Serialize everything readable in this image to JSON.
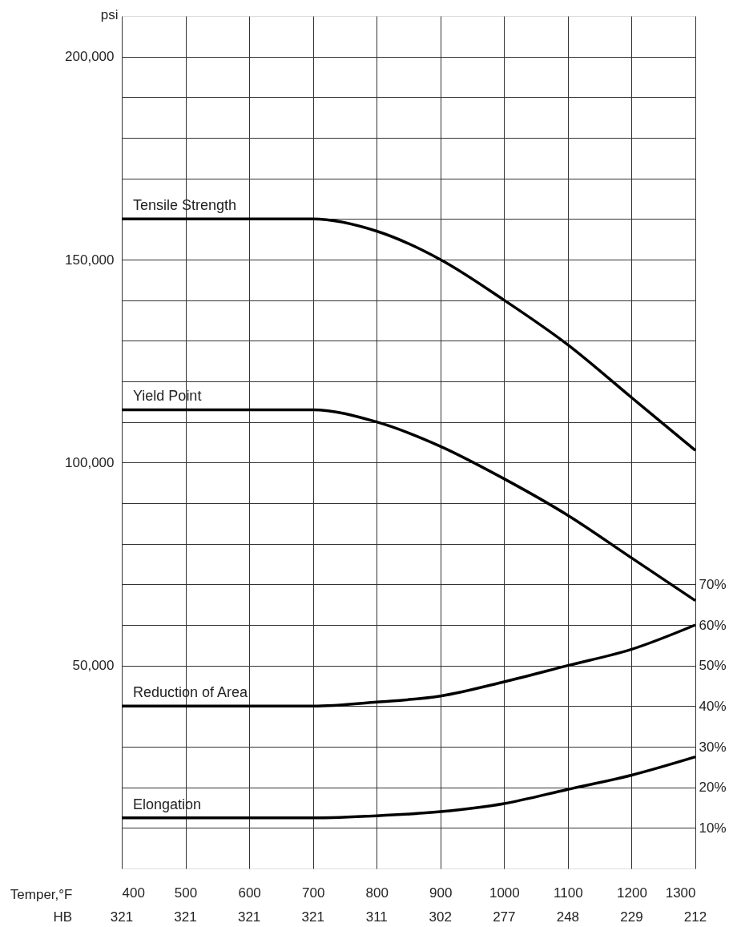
{
  "chart_data": {
    "type": "line",
    "xlabel": "Temper,°F",
    "ylabel": "psi",
    "x": [
      400,
      500,
      600,
      700,
      800,
      900,
      1000,
      1100,
      1200,
      1300
    ],
    "series": [
      {
        "name": "Tensile Strength",
        "color": "#000000",
        "values": [
          160000,
          160000,
          160000,
          160000,
          157000,
          150000,
          140000,
          129000,
          116000,
          103000
        ]
      },
      {
        "name": "Yield Point",
        "color": "#000000",
        "values": [
          113000,
          113000,
          113000,
          113000,
          110000,
          104000,
          96000,
          87000,
          76500,
          66000
        ]
      },
      {
        "name": "Reduction of Area",
        "color": "#000000",
        "axis": "y2",
        "values": [
          40,
          40,
          40,
          40,
          41,
          42.5,
          46,
          50,
          54,
          60
        ]
      },
      {
        "name": "Elongation",
        "color": "#000000",
        "axis": "y2",
        "values": [
          12.5,
          12.5,
          12.5,
          12.5,
          13,
          14,
          16,
          19.5,
          23,
          27.5
        ]
      }
    ],
    "xlim": [
      400,
      1300
    ],
    "xticks": [
      400,
      500,
      600,
      700,
      800,
      900,
      1000,
      1100,
      1200,
      1300
    ],
    "annotations": [
      "HB",
      "321",
      "321",
      "321",
      "321",
      "311",
      "302",
      "277",
      "248",
      "229",
      "212"
    ],
    "ylim": [
      0,
      210000
    ],
    "yticks": [
      {
        "value": 10000,
        "label": null
      },
      {
        "value": 20000,
        "label": null
      },
      {
        "value": 30000,
        "label": null
      },
      {
        "value": 40000,
        "label": null
      },
      {
        "value": 50000,
        "label": "50,000"
      },
      {
        "value": 60000,
        "label": null
      },
      {
        "value": 70000,
        "label": null
      },
      {
        "value": 80000,
        "label": null
      },
      {
        "value": 90000,
        "label": null
      },
      {
        "value": 100000,
        "label": "100,000"
      },
      {
        "value": 110000,
        "label": null
      },
      {
        "value": 120000,
        "label": null
      },
      {
        "value": 130000,
        "label": null
      },
      {
        "value": 140000,
        "label": null
      },
      {
        "value": 150000,
        "label": "150,000"
      },
      {
        "value": 160000,
        "label": null
      },
      {
        "value": 170000,
        "label": null
      },
      {
        "value": 180000,
        "label": null
      },
      {
        "value": 190000,
        "label": null
      },
      {
        "value": 200000,
        "label": "200,000"
      }
    ],
    "y2lim": [
      0,
      210
    ],
    "y2ticks": [
      {
        "value": 10,
        "label": "10%"
      },
      {
        "value": 20,
        "label": "20%"
      },
      {
        "value": 30,
        "label": "30%"
      },
      {
        "value": 40,
        "label": "40%"
      },
      {
        "value": 50,
        "label": "50%"
      },
      {
        "value": 60,
        "label": "60%"
      },
      {
        "value": 70,
        "label": "70%"
      }
    ],
    "grid": true,
    "marker": "none",
    "line_style": "solid"
  }
}
